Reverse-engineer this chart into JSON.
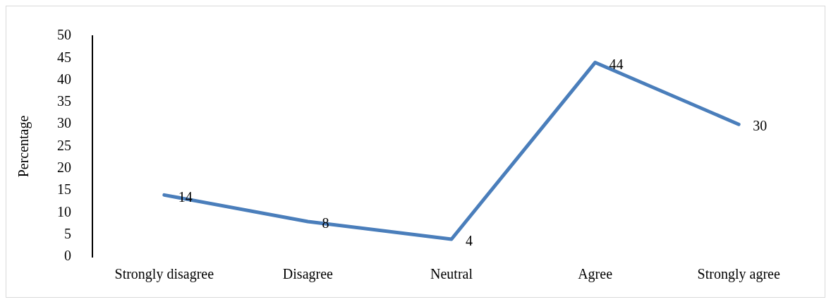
{
  "chart_data": {
    "type": "line",
    "ylabel": "Percentage",
    "categories": [
      "Strongly disagree",
      "Disagree",
      "Neutral",
      "Agree",
      "Strongly agree"
    ],
    "series": [
      {
        "color": "#4a7ebb",
        "values": [
          14,
          8,
          4,
          44,
          30
        ]
      }
    ],
    "ylim": [
      0,
      50
    ],
    "yticks": [
      0,
      5,
      10,
      15,
      20,
      25,
      30,
      35,
      40,
      45,
      50
    ],
    "grid": false,
    "legend": false,
    "marker": "none",
    "line_style": "solid",
    "data_labels": true
  }
}
